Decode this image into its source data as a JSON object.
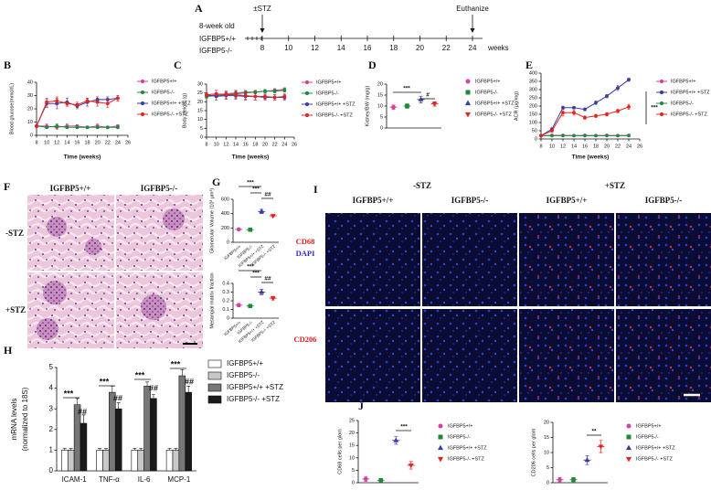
{
  "timeline": {
    "label": "A",
    "cohort": "8-week old",
    "groups": [
      "IGFBP5+/+",
      "IGFBP5-/-"
    ],
    "ticks": [
      8,
      10,
      12,
      14,
      16,
      18,
      20,
      22,
      24
    ],
    "unit": "weeks",
    "events": [
      {
        "label": "±STZ",
        "week": 8
      },
      {
        "label": "Euthanize",
        "week": 24
      }
    ]
  },
  "histology": {
    "label": "F",
    "columns": [
      "IGFBP5+/+",
      "IGFBP5-/-"
    ],
    "rows": [
      "-STZ",
      "+STZ"
    ]
  },
  "immunofluorescence": {
    "label": "I",
    "conditions": [
      "-STZ",
      "+STZ"
    ],
    "columns": [
      "IGFBP5+/+",
      "IGFBP5-/-",
      "IGFBP5+/+",
      "IGFBP5-/-"
    ],
    "stain_row1": [
      "CD68",
      "DAPI"
    ],
    "stain_row2": "CD206"
  },
  "chart_data": [
    {
      "type": "line",
      "panel": "B",
      "ylabel": "Blood glucose(mmol/L)",
      "xlabel": "Time (weeks)",
      "x": [
        8,
        10,
        12,
        14,
        16,
        18,
        20,
        22,
        24
      ],
      "xlim": [
        8,
        26
      ],
      "xticks": [
        8,
        10,
        12,
        14,
        16,
        18,
        20,
        22,
        24,
        26
      ],
      "ylim": [
        0,
        40
      ],
      "yticks": [
        0,
        10,
        20,
        30,
        40
      ],
      "series": [
        {
          "name": "IGFBP5+/+",
          "color": "#d63f9b",
          "marker": "circle",
          "values": [
            7,
            7,
            6,
            7,
            7,
            6,
            7,
            6,
            7
          ],
          "errors": [
            1,
            1.5,
            1.5,
            1.5,
            1,
            1,
            1.5,
            1,
            1
          ]
        },
        {
          "name": "IGFBP5-/-",
          "color": "#1f8a3c",
          "marker": "circle",
          "values": [
            7,
            6,
            7,
            6,
            6,
            6,
            6,
            6,
            6
          ],
          "errors": [
            1,
            1,
            1.5,
            1,
            1,
            1,
            1,
            1,
            1
          ]
        },
        {
          "name": "IGFBP5+/+ +STZ",
          "color": "#3a3aa8",
          "marker": "circle",
          "values": [
            7,
            24,
            24,
            25,
            22,
            25,
            27,
            27,
            28
          ],
          "errors": [
            1,
            3,
            4,
            3,
            2,
            3,
            2,
            2,
            2
          ]
        },
        {
          "name": "IGFBP5-/- +STZ",
          "color": "#e5231e",
          "marker": "circle",
          "values": [
            7,
            25,
            26,
            24,
            23,
            26,
            25,
            24,
            28
          ],
          "errors": [
            1,
            3,
            3,
            2,
            2,
            2,
            3,
            3,
            2
          ]
        }
      ]
    },
    {
      "type": "line",
      "panel": "C",
      "ylabel": "Body weight (g)",
      "xlabel": "Time (weeks)",
      "x": [
        8,
        10,
        12,
        14,
        16,
        18,
        20,
        22,
        24
      ],
      "xlim": [
        8,
        26
      ],
      "xticks": [
        8,
        10,
        12,
        14,
        16,
        18,
        20,
        22,
        24,
        26
      ],
      "ylim": [
        0,
        30
      ],
      "yticks": [
        0,
        5,
        10,
        15,
        20,
        25,
        30
      ],
      "series": [
        {
          "name": "IGFBP5+/+",
          "color": "#d63f9b",
          "marker": "circle",
          "values": [
            23,
            24,
            24.5,
            25,
            25.5,
            25.5,
            26,
            26.5,
            27
          ],
          "errors": [
            1,
            1,
            1,
            1,
            1,
            1,
            1,
            1,
            1
          ]
        },
        {
          "name": "IGFBP5-/-",
          "color": "#1f8a3c",
          "marker": "circle",
          "values": [
            23,
            23.5,
            24,
            24.5,
            25,
            25.5,
            26,
            26,
            26.5
          ],
          "errors": [
            1,
            1,
            1,
            2,
            1,
            1,
            1,
            1,
            1
          ]
        },
        {
          "name": "IGFBP5+/+ +STZ",
          "color": "#3a3aa8",
          "marker": "circle",
          "values": [
            24,
            23,
            23.5,
            23.5,
            23,
            23,
            22.5,
            22.5,
            22.5
          ],
          "errors": [
            1,
            2,
            2,
            2,
            2,
            2,
            1.5,
            1.5,
            1.5
          ]
        },
        {
          "name": "IGFBP5-/- +STZ",
          "color": "#e5231e",
          "marker": "circle",
          "values": [
            24,
            24.5,
            24,
            24,
            23.5,
            23,
            23,
            22.5,
            23
          ],
          "errors": [
            1,
            2,
            2,
            2,
            2,
            2,
            1.5,
            1.5,
            1.5
          ]
        }
      ]
    },
    {
      "type": "dot",
      "panel": "D",
      "ylabel": "Kidney/BW (mg/g)",
      "ylim": [
        0,
        20
      ],
      "yticks": [
        0,
        5,
        10,
        15,
        20
      ],
      "annotations": [
        "***",
        "#"
      ],
      "series": [
        {
          "name": "IGFBP5+/+",
          "color": "#d63f9b",
          "marker": "circle",
          "values": [
            9.5
          ],
          "errors": [
            1
          ]
        },
        {
          "name": "IGFBP5-/-",
          "color": "#1f8a3c",
          "marker": "square",
          "values": [
            10
          ],
          "errors": [
            1
          ]
        },
        {
          "name": "IGFBP5+/+ +STZ",
          "color": "#3a3aa8",
          "marker": "triangle",
          "values": [
            13
          ],
          "errors": [
            1.5
          ]
        },
        {
          "name": "IGFBP5-/- +STZ",
          "color": "#e5231e",
          "marker": "triangle-down",
          "values": [
            11
          ],
          "errors": [
            1
          ]
        }
      ]
    },
    {
      "type": "line",
      "panel": "E",
      "ylabel": "ACR (μg/mg)",
      "xlabel": "Time (weeks)",
      "x": [
        8,
        10,
        12,
        14,
        16,
        18,
        20,
        22,
        24
      ],
      "xlim": [
        8,
        26
      ],
      "xticks": [
        8,
        10,
        12,
        14,
        16,
        18,
        20,
        22,
        24,
        26
      ],
      "ylim": [
        0,
        400
      ],
      "yticks": [
        0,
        50,
        100,
        150,
        200,
        250,
        300,
        350,
        400
      ],
      "annotations": [
        "***"
      ],
      "series": [
        {
          "name": "IGFBP5+/+",
          "color": "#d63f9b",
          "marker": "circle",
          "values": [
            20,
            22,
            22,
            21,
            22,
            21,
            22,
            21,
            22
          ],
          "errors": [
            3,
            3,
            3,
            3,
            3,
            3,
            3,
            3,
            3
          ]
        },
        {
          "name": "IGFBP5+/+ +STZ",
          "color": "#3a3aa8",
          "marker": "circle",
          "values": [
            20,
            60,
            190,
            190,
            180,
            220,
            260,
            310,
            360
          ],
          "errors": [
            3,
            8,
            10,
            8,
            8,
            10,
            10,
            15,
            10
          ]
        },
        {
          "name": "IGFBP5-/-",
          "color": "#1f8a3c",
          "marker": "circle",
          "values": [
            20,
            20,
            20,
            20,
            20,
            20,
            20,
            20,
            20
          ],
          "errors": [
            3,
            3,
            3,
            3,
            3,
            3,
            3,
            3,
            3
          ]
        },
        {
          "name": "IGFBP5-/- +STZ",
          "color": "#e5231e",
          "marker": "circle",
          "values": [
            20,
            50,
            160,
            160,
            130,
            140,
            150,
            170,
            195
          ],
          "errors": [
            3,
            8,
            20,
            15,
            10,
            10,
            10,
            10,
            15
          ]
        }
      ]
    },
    {
      "type": "dot",
      "panel": "G",
      "ylabel": "Glomerular Volume (10³ μm³)",
      "ylim": [
        0,
        600
      ],
      "yticks": [
        0,
        200,
        400,
        600
      ],
      "annotations": [
        "***",
        "***",
        "##"
      ],
      "categories": [
        "IGFBP5+/+",
        "IGFBP5-/-",
        "IGFBP5+/+ +STZ",
        "IGFBP5-/- +STZ"
      ],
      "colors": [
        "#d63f9b",
        "#1f8a3c",
        "#3a3aa8",
        "#e5231e"
      ],
      "markers": [
        "circle",
        "square",
        "triangle",
        "triangle-down"
      ],
      "values": [
        180,
        175,
        430,
        370
      ],
      "errors": [
        10,
        10,
        30,
        15
      ]
    },
    {
      "type": "dot",
      "ylabel": "Mesangial matrix fraction",
      "ylim": [
        0,
        0.4
      ],
      "yticks": [
        0,
        0.1,
        0.2,
        0.3,
        0.4
      ],
      "annotations": [
        "***",
        "***",
        "##"
      ],
      "categories": [
        "IGFBP5+/+",
        "IGFBP5-/-",
        "IGFBP5+/+ +STZ",
        "IGFBP5-/- +STZ"
      ],
      "colors": [
        "#d63f9b",
        "#1f8a3c",
        "#3a3aa8",
        "#e5231e"
      ],
      "markers": [
        "circle",
        "square",
        "triangle",
        "triangle-down"
      ],
      "values": [
        0.15,
        0.14,
        0.3,
        0.23
      ],
      "errors": [
        0.02,
        0.02,
        0.03,
        0.02
      ]
    },
    {
      "type": "bar",
      "panel": "H",
      "ylabel": "mRNA levels",
      "ylabel2": "(normalized to 18S)",
      "ylim": [
        0,
        5
      ],
      "yticks": [
        0,
        1,
        2,
        3,
        4,
        5
      ],
      "categories": [
        "ICAM-1",
        "TNF-α",
        "IL-6",
        "MCP-1"
      ],
      "annotations": [
        "***",
        "##",
        "***",
        "##",
        "***",
        "##",
        "***",
        "##"
      ],
      "series": [
        {
          "name": "IGFBP5+/+",
          "color": "#ffffff",
          "values": [
            1,
            1,
            1,
            1
          ],
          "errors": [
            0.08,
            0.08,
            0.08,
            0.08
          ]
        },
        {
          "name": "IGFBP5-/-",
          "color": "#c8c8c8",
          "values": [
            1,
            1,
            1,
            1
          ],
          "errors": [
            0.08,
            0.08,
            0.08,
            0.08
          ]
        },
        {
          "name": "IGFBP5+/+ +STZ",
          "color": "#777777",
          "values": [
            3.2,
            3.8,
            4.1,
            4.6
          ],
          "errors": [
            0.3,
            0.3,
            0.2,
            0.3
          ]
        },
        {
          "name": "IGFBP5-/- +STZ",
          "color": "#1a1a1a",
          "values": [
            2.3,
            3.0,
            3.5,
            3.8
          ],
          "errors": [
            0.4,
            0.3,
            0.2,
            0.3
          ]
        }
      ]
    },
    {
      "type": "dot",
      "panel": "J",
      "ylabel": "CD68 cells per glom",
      "ylim": [
        0,
        25
      ],
      "yticks": [
        0,
        5,
        10,
        15,
        20,
        25
      ],
      "annotations": [
        "***"
      ],
      "series": [
        {
          "name": "IGFBP5+/+",
          "color": "#d63f9b",
          "marker": "circle",
          "values": [
            1.5
          ],
          "errors": [
            1
          ]
        },
        {
          "name": "IGFBP5-/-",
          "color": "#1f8a3c",
          "marker": "square",
          "values": [
            1
          ],
          "errors": [
            0.7
          ]
        },
        {
          "name": "IGFBP5+/+ +STZ",
          "color": "#3a3aa8",
          "marker": "triangle",
          "values": [
            17
          ],
          "errors": [
            1.5
          ]
        },
        {
          "name": "IGFBP5-/- +STZ",
          "color": "#e5231e",
          "marker": "triangle-down",
          "values": [
            7
          ],
          "errors": [
            1.5
          ]
        }
      ]
    },
    {
      "type": "dot",
      "ylabel": "CD206 cells per glom",
      "ylim": [
        0,
        20
      ],
      "yticks": [
        0,
        5,
        10,
        15,
        20
      ],
      "annotations": [
        "**"
      ],
      "series": [
        {
          "name": "IGFBP5+/+",
          "color": "#d63f9b",
          "marker": "circle",
          "values": [
            1
          ],
          "errors": [
            0.7
          ]
        },
        {
          "name": "IGFBP5-/-",
          "color": "#1f8a3c",
          "marker": "square",
          "values": [
            1
          ],
          "errors": [
            0.7
          ]
        },
        {
          "name": "IGFBP5+/+ +STZ",
          "color": "#3a3aa8",
          "marker": "triangle",
          "values": [
            7.5
          ],
          "errors": [
            1.5
          ]
        },
        {
          "name": "IGFBP5-/- +STZ",
          "color": "#e5231e",
          "marker": "triangle-down",
          "values": [
            12
          ],
          "errors": [
            2
          ]
        }
      ]
    }
  ]
}
